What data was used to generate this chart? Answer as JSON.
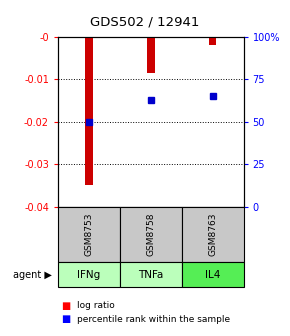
{
  "title": "GDS502 / 12941",
  "samples": [
    "GSM8753",
    "GSM8758",
    "GSM8763"
  ],
  "agents": [
    "IFNg",
    "TNFa",
    "IL4"
  ],
  "log_ratios": [
    -0.035,
    -0.0085,
    -0.002
  ],
  "percentile_ranks": [
    50,
    63,
    65
  ],
  "ylim_left": [
    -0.04,
    0
  ],
  "ylim_right": [
    0,
    100
  ],
  "yticks_left": [
    -0.04,
    -0.03,
    -0.02,
    -0.01,
    0
  ],
  "ytick_labels_left": [
    "-0.04",
    "-0.03",
    "-0.02",
    "-0.01",
    "-0"
  ],
  "yticks_right": [
    0,
    25,
    50,
    75,
    100
  ],
  "ytick_labels_right": [
    "0",
    "25",
    "50",
    "75",
    "100%"
  ],
  "bar_color": "#cc0000",
  "dot_color": "#0000cc",
  "sample_bg": "#c8c8c8",
  "agent_colors": [
    "#bbffbb",
    "#bbffbb",
    "#55ee55"
  ],
  "legend_log_ratio": "log ratio",
  "legend_percentile": "percentile rank within the sample",
  "agent_label": "agent",
  "bar_width": 0.12
}
